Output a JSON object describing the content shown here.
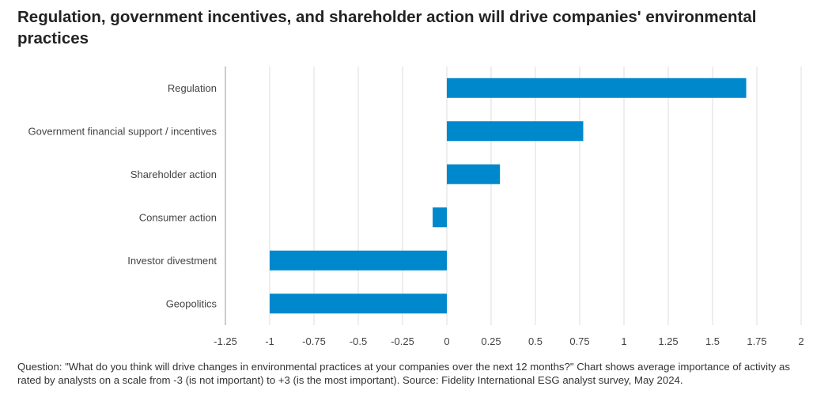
{
  "title": "Regulation, government incentives, and shareholder action will drive companies' environmental practices",
  "footnote": "Question: \"What do you think will drive changes in environmental practices at your companies over the next 12 months?\" Chart shows average importance of activity as rated by analysts on a scale from -3 (is not important) to +3 (is the most important). Source: Fidelity International ESG analyst survey, May 2024.",
  "chart_data": {
    "type": "bar",
    "orientation": "horizontal",
    "categories": [
      "Regulation",
      "Government financial support / incentives",
      "Shareholder action",
      "Consumer action",
      "Investor divestment",
      "Geopolitics"
    ],
    "values": [
      1.69,
      0.77,
      0.3,
      -0.08,
      -1.0,
      -1.0
    ],
    "xlim": [
      -1.25,
      2
    ],
    "xticks": [
      "-1.25",
      "-1",
      "-0.75",
      "-0.5",
      "-0.25",
      "0",
      "0.25",
      "0.5",
      "0.75",
      "1",
      "1.25",
      "1.5",
      "1.75",
      "2"
    ],
    "grid": true,
    "bar_color": "#0088cc"
  }
}
